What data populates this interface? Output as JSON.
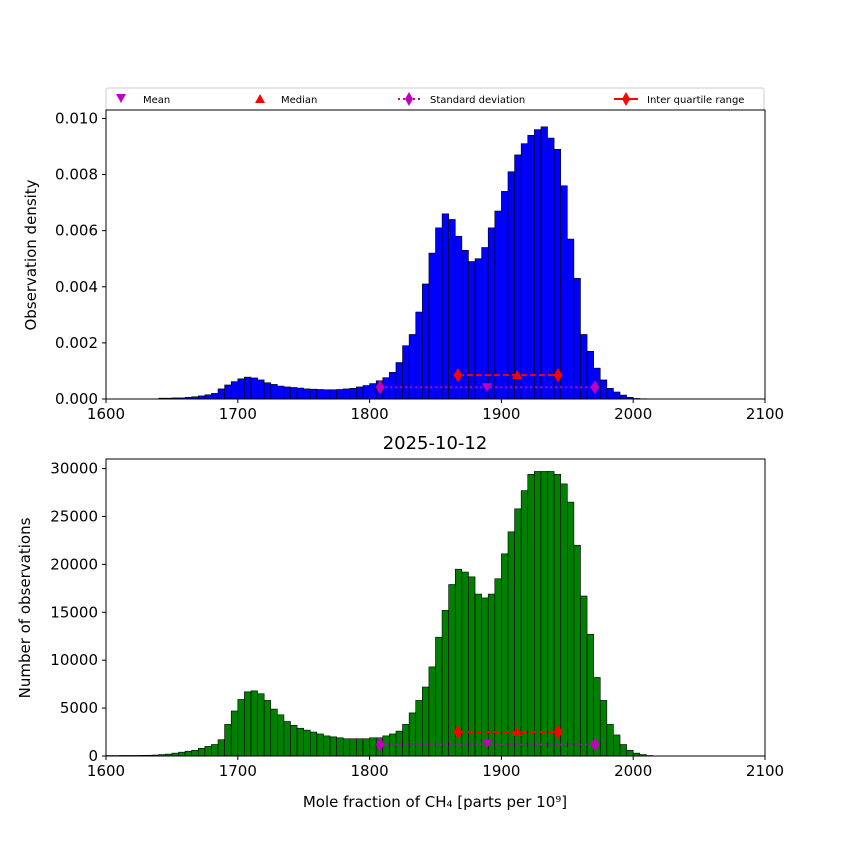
{
  "title": "2025-10-12",
  "legend": {
    "placement": "top",
    "items": [
      {
        "label": "Mean",
        "marker": "triangle-down",
        "color": "#bf00bf",
        "line": "none"
      },
      {
        "label": "Median",
        "marker": "triangle-up",
        "color": "#ff0000",
        "line": "none"
      },
      {
        "label": "Standard deviation",
        "marker": "diamond",
        "color": "#bf00bf",
        "line": "dotted"
      },
      {
        "label": "Inter quartile range",
        "marker": "diamond",
        "color": "#ff0000",
        "line": "solid"
      }
    ]
  },
  "chart_data": [
    {
      "type": "bar",
      "title": "",
      "xlabel": "",
      "ylabel": "Observation density",
      "xlim": [
        1600,
        2100
      ],
      "ylim": [
        0,
        0.0103
      ],
      "xticks": [
        "1600",
        "1700",
        "1800",
        "1900",
        "2000",
        "2100"
      ],
      "yticks": [
        "0.000",
        "0.002",
        "0.004",
        "0.006",
        "0.008",
        "0.010"
      ],
      "ytick_values": [
        0,
        0.002,
        0.004,
        0.006,
        0.008,
        0.01
      ],
      "bar_color": "#0000ff",
      "bin_start": 1640,
      "bin_width": 5,
      "values": [
        3e-05,
        3e-05,
        4e-05,
        4e-05,
        6e-05,
        8e-05,
        0.00011,
        0.00015,
        0.0002,
        0.00036,
        0.0005,
        0.00062,
        0.00072,
        0.00078,
        0.00075,
        0.00068,
        0.00058,
        0.00052,
        0.00046,
        0.00043,
        0.00041,
        0.00039,
        0.00036,
        0.00035,
        0.00034,
        0.00033,
        0.00033,
        0.00034,
        0.00036,
        0.00038,
        0.00043,
        0.00048,
        0.00055,
        0.00065,
        0.00076,
        0.00095,
        0.0013,
        0.0019,
        0.0023,
        0.0031,
        0.0041,
        0.0052,
        0.0061,
        0.0066,
        0.0064,
        0.0058,
        0.0053,
        0.0049,
        0.005,
        0.0054,
        0.0061,
        0.0067,
        0.0074,
        0.0081,
        0.0087,
        0.0091,
        0.0094,
        0.0096,
        0.0097,
        0.0093,
        0.0089,
        0.0076,
        0.0057,
        0.0043,
        0.0023,
        0.0017,
        0.0011,
        0.00068,
        0.00038,
        0.00025,
        0.00014,
        6e-05,
        2e-05,
        1e-05
      ],
      "stats": {
        "mean": {
          "x": 1889,
          "y": 0.00042
        },
        "median": {
          "x": 1912,
          "y": 0.00085
        },
        "std": {
          "x": [
            1808,
            1971
          ],
          "y": 0.00042
        },
        "iqr": {
          "x": [
            1867,
            1943
          ],
          "y": 0.00085
        }
      }
    },
    {
      "type": "bar",
      "title": "2025-10-12",
      "xlabel": "Mole fraction of CH₄ [parts per 10⁹]",
      "ylabel": "Number of observations",
      "xlim": [
        1600,
        2100
      ],
      "ylim": [
        0,
        31000
      ],
      "xticks": [
        "1600",
        "1700",
        "1800",
        "1900",
        "2000",
        "2100"
      ],
      "yticks": [
        "0",
        "5000",
        "10000",
        "15000",
        "20000",
        "25000",
        "30000"
      ],
      "ytick_values": [
        0,
        5000,
        10000,
        15000,
        20000,
        25000,
        30000
      ],
      "bar_color": "#008000",
      "bin_start": 1600,
      "bin_width": 5,
      "values": [
        50,
        50,
        60,
        60,
        60,
        70,
        80,
        100,
        150,
        200,
        300,
        400,
        500,
        600,
        800,
        1000,
        1200,
        1700,
        3300,
        4700,
        5900,
        6700,
        6800,
        6500,
        5800,
        4900,
        4300,
        3600,
        3200,
        2900,
        2700,
        2500,
        2300,
        2100,
        2000,
        1900,
        1800,
        1800,
        1800,
        1800,
        1900,
        1900,
        2100,
        2300,
        2600,
        3300,
        4500,
        5800,
        7200,
        9300,
        12400,
        15200,
        17900,
        19500,
        19200,
        18700,
        16900,
        16500,
        16900,
        18500,
        21100,
        23400,
        25800,
        27700,
        29400,
        29700,
        29700,
        29700,
        29400,
        28400,
        26500,
        22000,
        16700,
        12700,
        8200,
        5800,
        3300,
        2200,
        1200,
        600,
        300,
        150,
        50,
        20
      ],
      "stats": {
        "mean": {
          "x": 1889,
          "y": 1300
        },
        "median": {
          "x": 1912,
          "y": 2500
        },
        "std": {
          "x": [
            1808,
            1971
          ],
          "y": 1200
        },
        "iqr": {
          "x": [
            1867,
            1943
          ],
          "y": 2500
        }
      }
    }
  ]
}
